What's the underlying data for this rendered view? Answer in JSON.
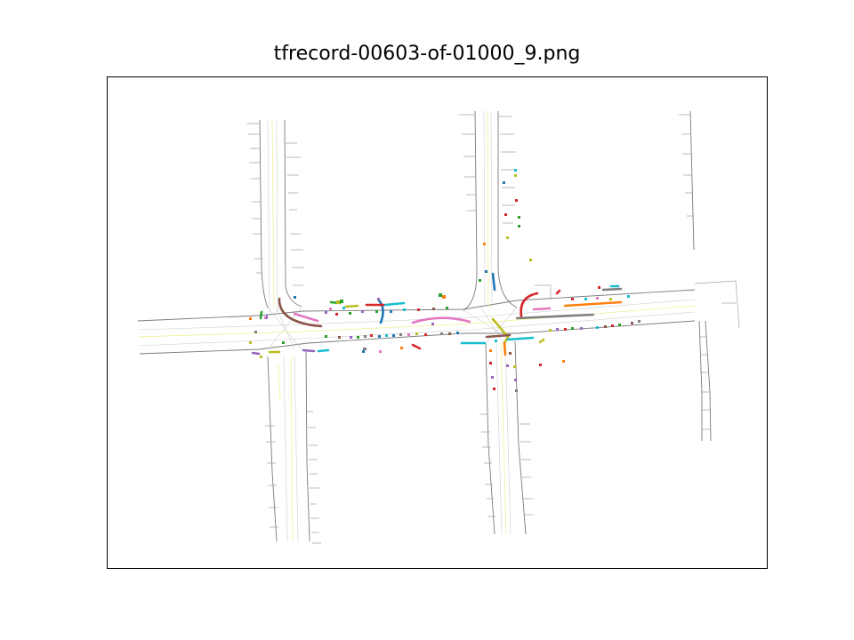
{
  "title": "tfrecord-00603-of-01000_9.png",
  "colors": {
    "road_edge": "#7a7a7a",
    "lane_line": "#c8c8c8",
    "center_line": "#f2ee8a",
    "frame": "#000000",
    "palette": [
      "#1f77b4",
      "#ff7f0e",
      "#2ca02c",
      "#d62728",
      "#9467bd",
      "#8c564b",
      "#e377c2",
      "#7f7f7f",
      "#bcbd22",
      "#17becf"
    ]
  }
}
